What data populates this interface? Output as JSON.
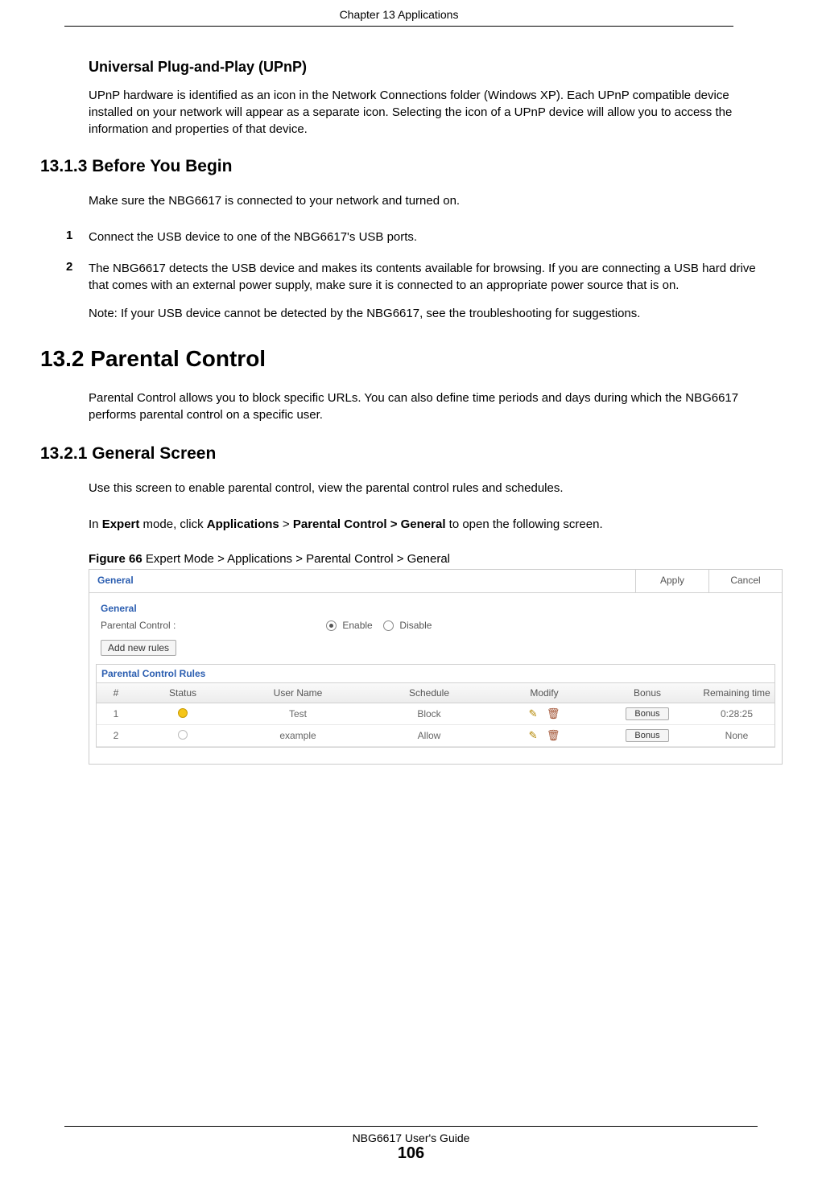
{
  "chapter_header": "Chapter 13 Applications",
  "upnp": {
    "title": "Universal Plug-and-Play (UPnP)",
    "text": "UPnP hardware is identified as an icon in the Network Connections folder (Windows XP). Each UPnP compatible device installed on your network will appear as a separate icon. Selecting the icon of a UPnP device will allow you to access the information and properties of that device."
  },
  "s13_1_3": {
    "heading": "13.1.3  Before You Begin",
    "intro": "Make sure the NBG6617 is connected to your network and turned on.",
    "step1_num": "1",
    "step1": "Connect the USB device to one of the NBG6617's USB ports.",
    "step2_num": "2",
    "step2": "The NBG6617 detects the USB device and makes its contents available for browsing. If you are connecting a USB hard drive that comes with an external power supply, make sure it is connected to an appropriate power source that is on.",
    "note": "Note: If your USB device cannot be detected by the NBG6617, see the troubleshooting for suggestions."
  },
  "s13_2": {
    "heading": "13.2  Parental Control",
    "text": "Parental Control allows you to block specific URLs. You can also define time periods and days during which the NBG6617 performs parental control on a specific user."
  },
  "s13_2_1": {
    "heading": "13.2.1  General Screen",
    "p1": "Use this screen to enable parental control, view the parental control rules and schedules.",
    "p2_pre": "In ",
    "p2_b1": "Expert",
    "p2_mid": " mode, click ",
    "p2_b2": "Applications",
    "p2_gt": " > ",
    "p2_b3": "Parental Control > General",
    "p2_post": " to open the following screen.",
    "fig_label_b": "Figure 66",
    "fig_label_rest": "   Expert Mode > Applications > Parental Control > General"
  },
  "figure": {
    "tab": "General",
    "apply": "Apply",
    "cancel": "Cancel",
    "section": "General",
    "pc_label": "Parental Control :",
    "enable": "Enable",
    "disable": "Disable",
    "add_btn": "Add new rules",
    "rules_title": "Parental Control Rules",
    "headers": {
      "num": "#",
      "status": "Status",
      "user": "User Name",
      "sched": "Schedule",
      "modify": "Modify",
      "bonus": "Bonus",
      "remain": "Remaining time"
    },
    "rows": [
      {
        "n": "1",
        "status": "on",
        "user": "Test",
        "sched": "Block",
        "bonus": "Bonus",
        "remain": "0:28:25"
      },
      {
        "n": "2",
        "status": "off",
        "user": "example",
        "sched": "Allow",
        "bonus": "Bonus",
        "remain": "None"
      }
    ]
  },
  "footer": {
    "guide": "NBG6617 User's Guide",
    "page": "106"
  }
}
